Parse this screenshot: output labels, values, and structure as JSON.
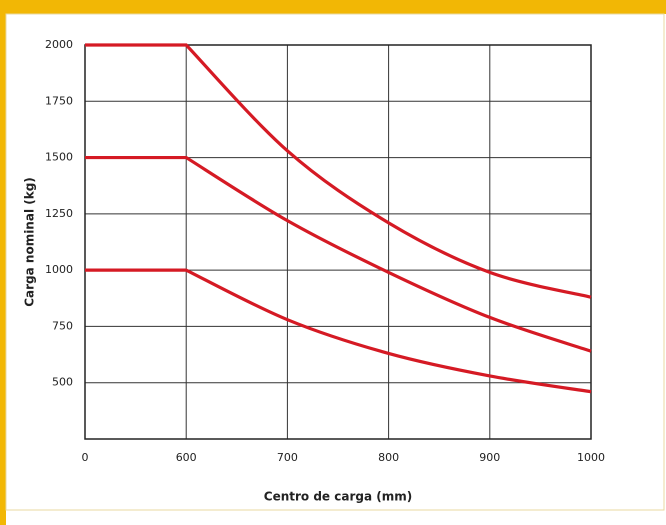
{
  "chart_data": {
    "type": "line",
    "x_label": "Centro de carga (mm)",
    "y_label": "Carga nominal (kg)",
    "categories": [
      "0",
      "600",
      "700",
      "800",
      "900",
      "1000"
    ],
    "series": [
      {
        "color": "#d51a24",
        "values": [
          2000,
          2000,
          1530,
          1210,
          990,
          880
        ]
      },
      {
        "color": "#d51a24",
        "values": [
          1500,
          1500,
          1220,
          990,
          790,
          640
        ]
      },
      {
        "color": "#d51a24",
        "values": [
          1000,
          1000,
          780,
          630,
          530,
          460
        ]
      }
    ],
    "ylim": [
      250,
      2000
    ],
    "yticks": [
      500,
      750,
      1000,
      1250,
      1500,
      1750,
      2000
    ],
    "grid": true
  }
}
